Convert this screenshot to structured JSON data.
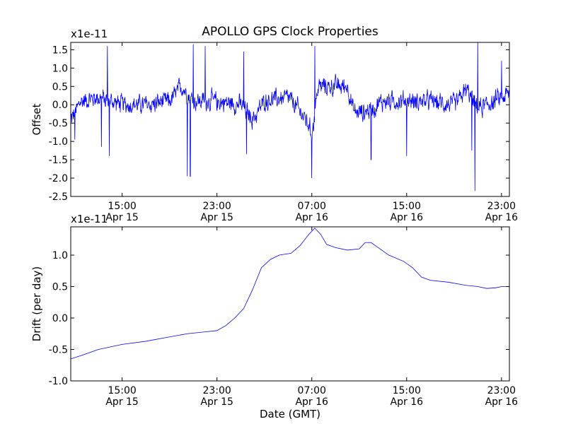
{
  "figure": {
    "title": "APOLLO GPS Clock Properties"
  },
  "chart_data": [
    {
      "type": "line",
      "ylabel": "Offset",
      "xlabel": "",
      "y_multiplier_label": "x1e-11",
      "ylim": [
        -2.5,
        1.7
      ],
      "yticks": [
        -2.5,
        -2.0,
        -1.5,
        -1.0,
        -0.5,
        0.0,
        0.5,
        1.0,
        1.5
      ],
      "ytick_labels": [
        "-2.5",
        "-2.0",
        "-1.5",
        "-1.0",
        "-0.5",
        "0.0",
        "0.5",
        "1.0",
        "1.5"
      ],
      "xlim_hours": [
        11.0,
        23.7
      ],
      "xticks": [
        {
          "at": "Apr 15 15:00",
          "line1": "15:00",
          "line2": "Apr 15"
        },
        {
          "at": "Apr 15 23:00",
          "line1": "23:00",
          "line2": "Apr 15"
        },
        {
          "at": "Apr 16 07:00",
          "line1": "07:00",
          "line2": "Apr 16"
        },
        {
          "at": "Apr 16 15:00",
          "line1": "15:00",
          "line2": "Apr 16"
        },
        {
          "at": "Apr 16 23:00",
          "line1": "23:00",
          "line2": "Apr 16"
        }
      ],
      "x_start": "Apr 15 10:40",
      "x_end": "Apr 16 23:40",
      "line_color": "#0000ff",
      "series": [
        {
          "baseline": [
            [
              "Apr 15 10:40",
              -0.4
            ],
            [
              "Apr 15 11:30",
              0.1
            ],
            [
              "Apr 15 13:00",
              0.2
            ],
            [
              "Apr 15 15:00",
              0.0
            ],
            [
              "Apr 15 17:00",
              0.0
            ],
            [
              "Apr 15 19:00",
              0.1
            ],
            [
              "Apr 15 20:00",
              0.5
            ],
            [
              "Apr 15 21:00",
              0.1
            ],
            [
              "Apr 15 23:00",
              0.1
            ],
            [
              "Apr 16 01:00",
              0.0
            ],
            [
              "Apr 16 02:00",
              -0.4
            ],
            [
              "Apr 16 03:00",
              0.1
            ],
            [
              "Apr 16 05:00",
              0.2
            ],
            [
              "Apr 16 06:30",
              -0.4
            ],
            [
              "Apr 16 07:00",
              -0.8
            ],
            [
              "Apr 16 07:30",
              0.5
            ],
            [
              "Apr 16 10:00",
              0.5
            ],
            [
              "Apr 16 10:30",
              -0.2
            ],
            [
              "Apr 16 11:30",
              -0.2
            ],
            [
              "Apr 16 13:00",
              0.1
            ],
            [
              "Apr 16 15:00",
              0.1
            ],
            [
              "Apr 16 17:00",
              0.1
            ],
            [
              "Apr 16 19:00",
              0.0
            ],
            [
              "Apr 16 20:00",
              0.4
            ],
            [
              "Apr 16 21:00",
              -0.1
            ],
            [
              "Apr 16 23:00",
              0.2
            ],
            [
              "Apr 16 23:40",
              0.3
            ]
          ],
          "noise_amplitude": 0.35,
          "spikes": [
            [
              "Apr 15 11:00",
              -0.95
            ],
            [
              "Apr 15 13:15",
              -1.15
            ],
            [
              "Apr 15 13:45",
              1.6
            ],
            [
              "Apr 15 13:55",
              -1.4
            ],
            [
              "Apr 15 20:30",
              -1.95
            ],
            [
              "Apr 15 20:45",
              -1.95
            ],
            [
              "Apr 15 21:00",
              1.65
            ],
            [
              "Apr 15 22:00",
              1.6
            ],
            [
              "Apr 16 01:15",
              1.45
            ],
            [
              "Apr 16 01:30",
              -1.35
            ],
            [
              "Apr 16 07:00",
              -2.0
            ],
            [
              "Apr 16 07:15",
              1.6
            ],
            [
              "Apr 16 12:00",
              -1.5
            ],
            [
              "Apr 16 15:00",
              -1.4
            ],
            [
              "Apr 16 20:30",
              -1.25
            ],
            [
              "Apr 16 20:45",
              -2.35
            ],
            [
              "Apr 16 21:00",
              1.7
            ],
            [
              "Apr 16 23:00",
              1.2
            ]
          ]
        }
      ]
    },
    {
      "type": "line",
      "ylabel": "Drift (per day)",
      "xlabel": "Date (GMT)",
      "y_multiplier_label": "x1e-11",
      "ylim": [
        -1.0,
        1.45
      ],
      "yticks": [
        -1.0,
        -0.5,
        0.0,
        0.5,
        1.0
      ],
      "ytick_labels": [
        "-1.0",
        "-0.5",
        "0.0",
        "0.5",
        "1.0"
      ],
      "xticks": [
        {
          "at": "Apr 15 15:00",
          "line1": "15:00",
          "line2": "Apr 15"
        },
        {
          "at": "Apr 15 23:00",
          "line1": "23:00",
          "line2": "Apr 15"
        },
        {
          "at": "Apr 16 07:00",
          "line1": "07:00",
          "line2": "Apr 16"
        },
        {
          "at": "Apr 16 15:00",
          "line1": "15:00",
          "line2": "Apr 16"
        },
        {
          "at": "Apr 16 23:00",
          "line1": "23:00",
          "line2": "Apr 16"
        }
      ],
      "x_start": "Apr 15 10:40",
      "x_end": "Apr 16 23:40",
      "line_color": "#0000ff",
      "series": [
        {
          "points": [
            [
              "Apr 15 10:40",
              -0.65
            ],
            [
              "Apr 15 11:30",
              -0.6
            ],
            [
              "Apr 15 13:00",
              -0.5
            ],
            [
              "Apr 15 15:00",
              -0.42
            ],
            [
              "Apr 15 17:00",
              -0.37
            ],
            [
              "Apr 15 19:00",
              -0.3
            ],
            [
              "Apr 15 20:30",
              -0.25
            ],
            [
              "Apr 15 22:00",
              -0.22
            ],
            [
              "Apr 15 23:00",
              -0.2
            ],
            [
              "Apr 15 23:45",
              -0.12
            ],
            [
              "Apr 16 00:30",
              0.0
            ],
            [
              "Apr 16 01:15",
              0.15
            ],
            [
              "Apr 16 02:00",
              0.45
            ],
            [
              "Apr 16 02:45",
              0.8
            ],
            [
              "Apr 16 03:30",
              0.93
            ],
            [
              "Apr 16 04:15",
              1.0
            ],
            [
              "Apr 16 05:15",
              1.03
            ],
            [
              "Apr 16 06:00",
              1.15
            ],
            [
              "Apr 16 06:45",
              1.33
            ],
            [
              "Apr 16 07:15",
              1.43
            ],
            [
              "Apr 16 07:45",
              1.33
            ],
            [
              "Apr 16 08:15",
              1.17
            ],
            [
              "Apr 16 09:00",
              1.12
            ],
            [
              "Apr 16 10:00",
              1.08
            ],
            [
              "Apr 16 11:00",
              1.1
            ],
            [
              "Apr 16 11:30",
              1.2
            ],
            [
              "Apr 16 12:00",
              1.2
            ],
            [
              "Apr 16 12:45",
              1.1
            ],
            [
              "Apr 16 13:30",
              1.0
            ],
            [
              "Apr 16 14:45",
              0.9
            ],
            [
              "Apr 16 15:30",
              0.8
            ],
            [
              "Apr 16 16:15",
              0.65
            ],
            [
              "Apr 16 17:00",
              0.6
            ],
            [
              "Apr 16 18:30",
              0.57
            ],
            [
              "Apr 16 20:00",
              0.52
            ],
            [
              "Apr 16 21:00",
              0.5
            ],
            [
              "Apr 16 21:45",
              0.47
            ],
            [
              "Apr 16 22:30",
              0.48
            ],
            [
              "Apr 16 23:00",
              0.5
            ],
            [
              "Apr 16 23:40",
              0.5
            ]
          ]
        }
      ]
    }
  ]
}
